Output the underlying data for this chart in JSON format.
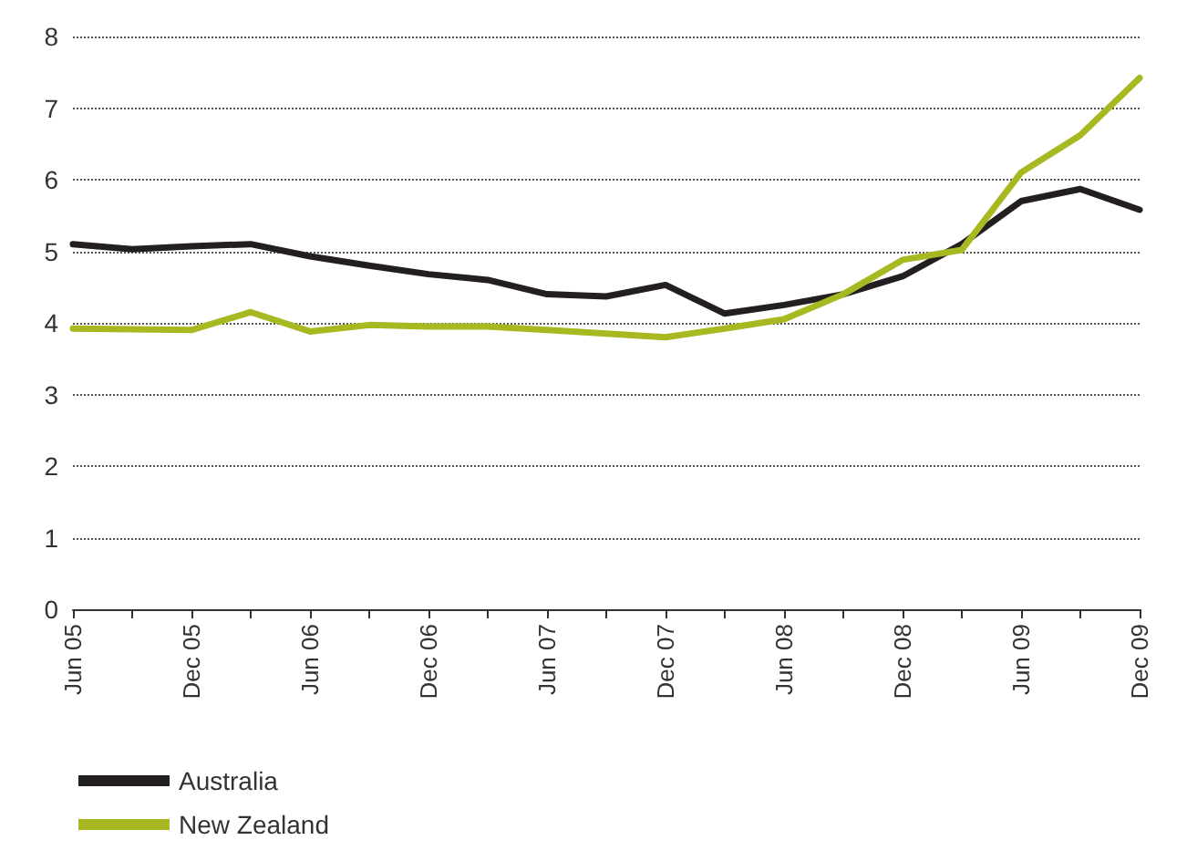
{
  "chart_data": {
    "type": "line",
    "categories": [
      "Jun 05",
      null,
      "Dec 05",
      null,
      "Jun 06",
      null,
      "Dec 06",
      null,
      "Jun 07",
      null,
      "Dec 07",
      null,
      "Jun 08",
      null,
      "Dec 08",
      null,
      "Jun 09",
      null,
      "Dec 09"
    ],
    "series": [
      {
        "name": "Australia",
        "color": "#231f20",
        "values": [
          5.1,
          5.03,
          5.07,
          5.1,
          4.93,
          4.8,
          4.68,
          4.6,
          4.4,
          4.37,
          4.53,
          4.13,
          4.25,
          4.4,
          4.65,
          5.1,
          5.7,
          5.87,
          5.58
        ]
      },
      {
        "name": "New Zealand",
        "color": "#a8b820",
        "values": [
          3.92,
          3.91,
          3.9,
          4.15,
          3.88,
          3.97,
          3.95,
          3.95,
          3.9,
          3.85,
          3.8,
          3.92,
          4.05,
          4.4,
          4.88,
          5.02,
          6.1,
          6.62,
          7.42
        ]
      }
    ],
    "ylim": [
      0,
      8
    ],
    "yticks": [
      0,
      1,
      2,
      3,
      4,
      5,
      6,
      7,
      8
    ],
    "grid": "y",
    "legend": "bottom left",
    "marker": "none",
    "line_style": "solid"
  }
}
